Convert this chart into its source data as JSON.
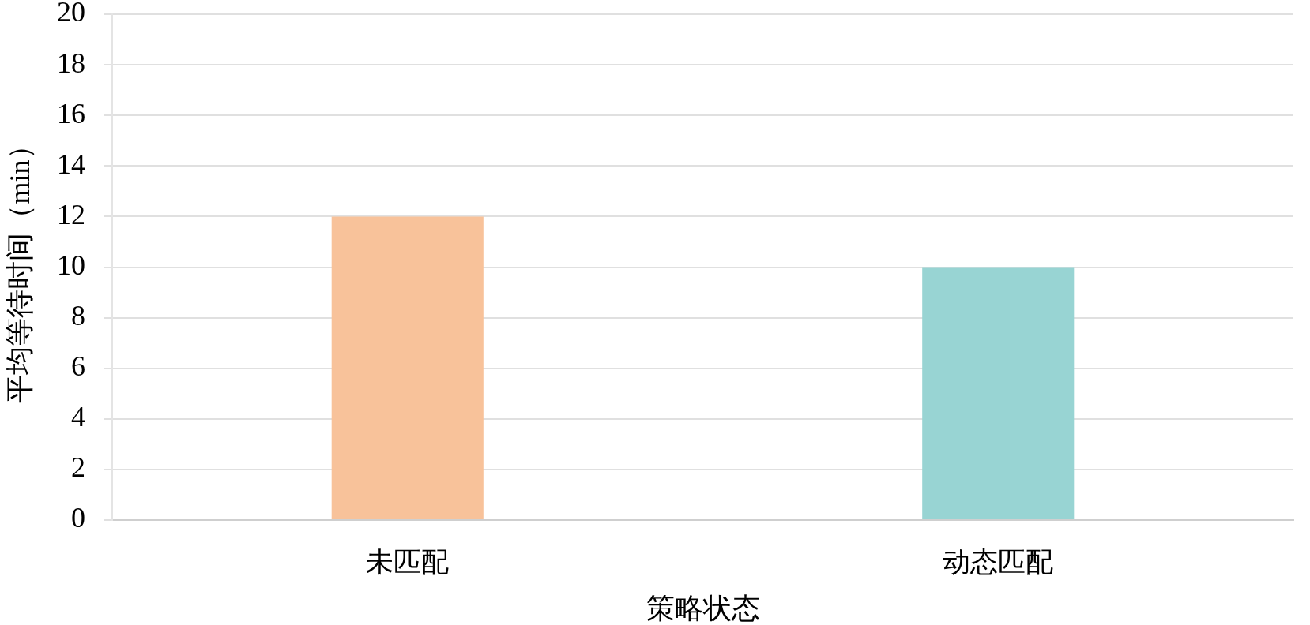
{
  "chart_data": {
    "type": "bar",
    "xlabel": "策略状态",
    "ylabel": "平均等待时间（min）",
    "categories": [
      "未匹配",
      "动态匹配"
    ],
    "values": [
      12,
      10
    ],
    "colors": [
      "#f8c29a",
      "#98d4d3"
    ],
    "ylim": [
      0,
      20
    ],
    "yticks": [
      0,
      2,
      4,
      6,
      8,
      10,
      12,
      14,
      16,
      18,
      20
    ],
    "grid": "y"
  }
}
